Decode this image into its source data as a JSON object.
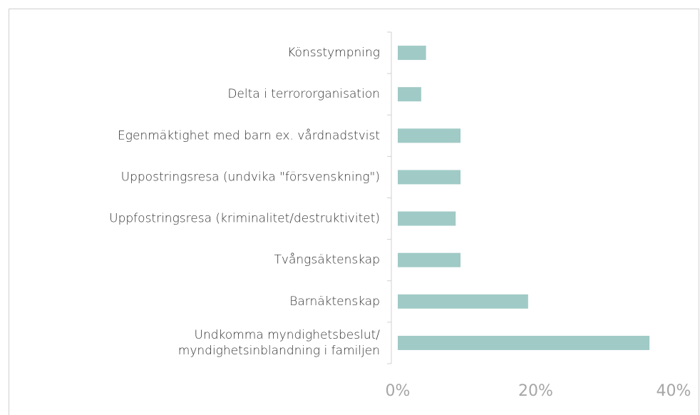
{
  "chart_data": {
    "type": "bar",
    "orientation": "horizontal",
    "categories": [
      "Könsstympning",
      "Delta i terrororganisation",
      "Egenmäktighet med barn ex. vårdnadstvist",
      "Uppostringsresa (undvika \"försvenskning\")",
      "Uppfostringsresa (kriminalitet/destruktivitet)",
      "Tvångsäktenskap",
      "Barnäktenskap",
      "Undkomma myndighetsbeslut/\nmyndighetsinblandning i familjen"
    ],
    "values": [
      4.1,
      3.4,
      9.1,
      9.1,
      8.4,
      9.1,
      18.9,
      36.5
    ],
    "color": "#a0cac6",
    "xlim": [
      0,
      40
    ],
    "xticks": [
      {
        "value": 0,
        "label": "0%"
      },
      {
        "value": 20,
        "label": "20%"
      },
      {
        "value": 40,
        "label": "40%"
      }
    ],
    "grid": false
  }
}
